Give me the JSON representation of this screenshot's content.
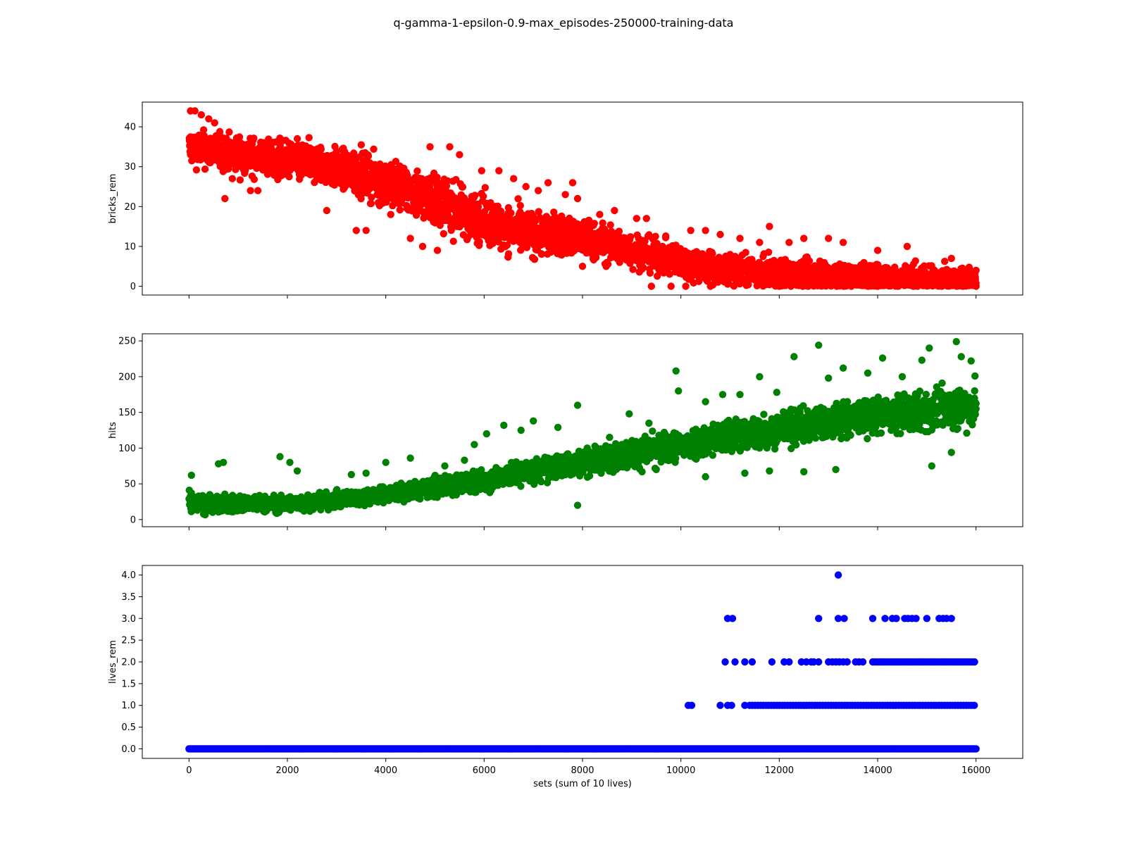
{
  "figure": {
    "title": "q-gamma-1-epsilon-0.9-max_episodes-250000-training-data"
  },
  "chart_data": [
    {
      "type": "scatter",
      "ylabel": "bricks_rem",
      "xlabel": "",
      "color": "#ff0000",
      "xlim": [
        -950,
        16950
      ],
      "ylim": [
        -2.2,
        46.2
      ],
      "x_ticks": [
        0,
        2000,
        4000,
        6000,
        8000,
        10000,
        12000,
        14000,
        16000
      ],
      "x_tick_labels_visible": false,
      "y_ticks": [
        0,
        10,
        20,
        30,
        40
      ],
      "y_tick_labels": [
        "0",
        "10",
        "20",
        "30",
        "40"
      ],
      "trend": [
        [
          0,
          35
        ],
        [
          1000,
          33
        ],
        [
          2500,
          31
        ],
        [
          3500,
          28
        ],
        [
          4500,
          24
        ],
        [
          5500,
          19
        ],
        [
          6500,
          14
        ],
        [
          8000,
          12
        ],
        [
          9000,
          9
        ],
        [
          10000,
          6
        ],
        [
          11000,
          4
        ],
        [
          12000,
          3
        ],
        [
          13000,
          2.5
        ],
        [
          14000,
          2
        ],
        [
          15000,
          1.8
        ],
        [
          16000,
          1.2
        ]
      ],
      "spread": [
        [
          0,
          4
        ],
        [
          3000,
          4.5
        ],
        [
          5000,
          6
        ],
        [
          7000,
          5
        ],
        [
          9000,
          4
        ],
        [
          11000,
          3.5
        ],
        [
          16000,
          3
        ]
      ],
      "y_min_clip": 0,
      "points": [
        [
          30,
          44
        ],
        [
          120,
          44
        ],
        [
          250,
          43
        ],
        [
          400,
          42
        ],
        [
          520,
          41
        ],
        [
          730,
          22
        ],
        [
          880,
          27
        ],
        [
          1250,
          24
        ],
        [
          1400,
          24
        ],
        [
          2800,
          19
        ],
        [
          3400,
          14
        ],
        [
          3600,
          14
        ],
        [
          4100,
          18
        ],
        [
          4500,
          12
        ],
        [
          4750,
          10
        ],
        [
          5050,
          9
        ],
        [
          4900,
          35
        ],
        [
          5300,
          35
        ],
        [
          5500,
          33
        ],
        [
          5950,
          29
        ],
        [
          6300,
          29
        ],
        [
          6600,
          27
        ],
        [
          6850,
          25
        ],
        [
          7100,
          24
        ],
        [
          7300,
          26
        ],
        [
          7650,
          23
        ],
        [
          7800,
          26
        ],
        [
          7900,
          22
        ],
        [
          8350,
          18
        ],
        [
          8650,
          19
        ],
        [
          9100,
          17
        ],
        [
          9300,
          17
        ],
        [
          8000,
          5
        ],
        [
          9600,
          4
        ],
        [
          10200,
          14
        ],
        [
          10500,
          14
        ],
        [
          10800,
          13
        ],
        [
          11200,
          12
        ],
        [
          11600,
          11
        ],
        [
          11800,
          15
        ],
        [
          12200,
          11
        ],
        [
          12500,
          12
        ],
        [
          13000,
          12
        ],
        [
          13300,
          11
        ],
        [
          14000,
          9
        ],
        [
          14600,
          10
        ],
        [
          15500,
          7
        ],
        [
          16000,
          4
        ],
        [
          9400,
          0
        ],
        [
          9800,
          0
        ],
        [
          10100,
          0
        ],
        [
          10600,
          0
        ],
        [
          12000,
          0
        ],
        [
          14000,
          0
        ],
        [
          16000,
          0
        ]
      ]
    },
    {
      "type": "scatter",
      "ylabel": "hits",
      "xlabel": "",
      "color": "#008000",
      "xlim": [
        -950,
        16950
      ],
      "ylim": [
        -10,
        260
      ],
      "x_ticks": [
        0,
        2000,
        4000,
        6000,
        8000,
        10000,
        12000,
        14000,
        16000
      ],
      "x_tick_labels_visible": false,
      "y_ticks": [
        0,
        50,
        100,
        150,
        200,
        250
      ],
      "y_tick_labels": [
        "0",
        "50",
        "100",
        "150",
        "200",
        "250"
      ],
      "trend": [
        [
          0,
          22
        ],
        [
          1000,
          22
        ],
        [
          2000,
          22
        ],
        [
          3000,
          27
        ],
        [
          4000,
          36
        ],
        [
          5000,
          45
        ],
        [
          6000,
          55
        ],
        [
          7000,
          68
        ],
        [
          8000,
          80
        ],
        [
          9000,
          92
        ],
        [
          10000,
          104
        ],
        [
          11000,
          116
        ],
        [
          12000,
          128
        ],
        [
          13000,
          137
        ],
        [
          14000,
          145
        ],
        [
          15000,
          152
        ],
        [
          16000,
          162
        ]
      ],
      "spread": [
        [
          0,
          12
        ],
        [
          2000,
          10
        ],
        [
          4000,
          10
        ],
        [
          6000,
          14
        ],
        [
          8000,
          16
        ],
        [
          10000,
          20
        ],
        [
          12000,
          22
        ],
        [
          14000,
          22
        ],
        [
          16000,
          28
        ]
      ],
      "y_min_clip": 0,
      "points": [
        [
          50,
          62
        ],
        [
          600,
          78
        ],
        [
          700,
          80
        ],
        [
          1850,
          88
        ],
        [
          2050,
          80
        ],
        [
          2200,
          68
        ],
        [
          3300,
          63
        ],
        [
          4000,
          80
        ],
        [
          4500,
          86
        ],
        [
          5200,
          75
        ],
        [
          5600,
          83
        ],
        [
          5800,
          105
        ],
        [
          6050,
          120
        ],
        [
          6400,
          132
        ],
        [
          6750,
          125
        ],
        [
          7000,
          138
        ],
        [
          7500,
          129
        ],
        [
          7900,
          160
        ],
        [
          8550,
          115
        ],
        [
          8950,
          148
        ],
        [
          9350,
          135
        ],
        [
          9900,
          208
        ],
        [
          9950,
          180
        ],
        [
          10500,
          165
        ],
        [
          10850,
          175
        ],
        [
          11200,
          175
        ],
        [
          11600,
          200
        ],
        [
          11950,
          178
        ],
        [
          12300,
          228
        ],
        [
          12800,
          244
        ],
        [
          13000,
          198
        ],
        [
          13300,
          212
        ],
        [
          13800,
          205
        ],
        [
          14100,
          226
        ],
        [
          14500,
          200
        ],
        [
          14900,
          223
        ],
        [
          15050,
          240
        ],
        [
          15600,
          249
        ],
        [
          15700,
          228
        ],
        [
          15900,
          222
        ],
        [
          7900,
          20
        ],
        [
          3600,
          65
        ],
        [
          12500,
          67
        ],
        [
          13150,
          70
        ],
        [
          15100,
          75
        ],
        [
          15500,
          94
        ],
        [
          9500,
          70
        ],
        [
          10500,
          60
        ],
        [
          11300,
          65
        ],
        [
          11800,
          68
        ]
      ]
    },
    {
      "type": "scatter",
      "ylabel": "lives_rem",
      "xlabel": "sets (sum of 10 lives)",
      "color": "#0000ff",
      "xlim": [
        -950,
        16950
      ],
      "ylim": [
        -0.22,
        4.22
      ],
      "x_ticks": [
        0,
        2000,
        4000,
        6000,
        8000,
        10000,
        12000,
        14000,
        16000
      ],
      "x_tick_labels": [
        "0",
        "2000",
        "4000",
        "6000",
        "8000",
        "10000",
        "12000",
        "14000",
        "16000"
      ],
      "y_ticks": [
        0,
        0.5,
        1.0,
        1.5,
        2.0,
        2.5,
        3.0,
        3.5,
        4.0
      ],
      "y_tick_labels": [
        "0.0",
        "0.5",
        "1.0",
        "1.5",
        "2.0",
        "2.5",
        "3.0",
        "3.5",
        "4.0"
      ],
      "baseline": {
        "y": 0,
        "x_from": 0,
        "x_to": 16000
      },
      "point_runs": [
        {
          "y": 1,
          "x_from": 11400,
          "x_to": 16000,
          "step": 55
        },
        {
          "y": 2,
          "x_from": 13900,
          "x_to": 16000,
          "step": 45
        }
      ],
      "points": [
        [
          10150,
          1
        ],
        [
          10220,
          1
        ],
        [
          10800,
          1
        ],
        [
          10950,
          1
        ],
        [
          11030,
          1
        ],
        [
          11300,
          1
        ],
        [
          10900,
          2
        ],
        [
          11100,
          2
        ],
        [
          11300,
          2
        ],
        [
          11450,
          2
        ],
        [
          11850,
          2
        ],
        [
          12100,
          2
        ],
        [
          12200,
          2
        ],
        [
          12450,
          2
        ],
        [
          12550,
          2
        ],
        [
          12650,
          2
        ],
        [
          12700,
          2
        ],
        [
          12800,
          2
        ],
        [
          13000,
          2
        ],
        [
          13080,
          2
        ],
        [
          13150,
          2
        ],
        [
          13220,
          2
        ],
        [
          13300,
          2
        ],
        [
          13380,
          2
        ],
        [
          13550,
          2
        ],
        [
          13620,
          2
        ],
        [
          13700,
          2
        ],
        [
          10950,
          3
        ],
        [
          11050,
          3
        ],
        [
          12800,
          3
        ],
        [
          13200,
          3
        ],
        [
          13320,
          3
        ],
        [
          13900,
          3
        ],
        [
          14150,
          3
        ],
        [
          14300,
          3
        ],
        [
          14380,
          3
        ],
        [
          14550,
          3
        ],
        [
          14620,
          3
        ],
        [
          14700,
          3
        ],
        [
          14780,
          3
        ],
        [
          15000,
          3
        ],
        [
          15250,
          3
        ],
        [
          15330,
          3
        ],
        [
          15400,
          3
        ],
        [
          15500,
          3
        ],
        [
          13200,
          4
        ]
      ]
    }
  ]
}
